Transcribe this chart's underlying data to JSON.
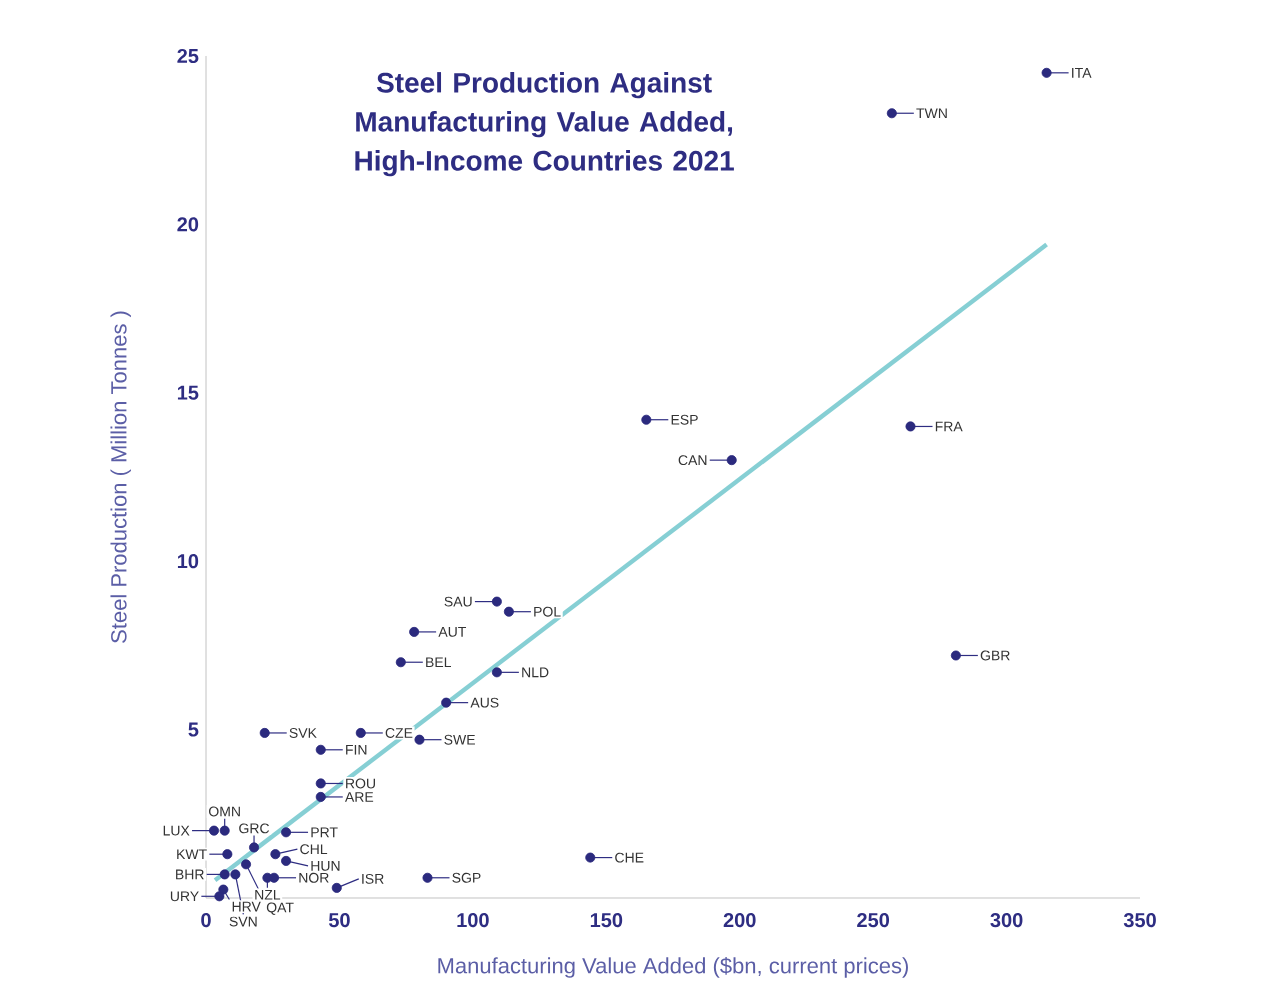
{
  "chart_data": {
    "type": "scatter",
    "title": "Steel Production Against Manufacturing Value Added, High-Income Countries 2021",
    "xlabel": "Manufacturing Value Added ($bn, current prices)",
    "ylabel": "Steel Production ( Million Tonnes )",
    "xlim": [
      0,
      350
    ],
    "xticks": [
      0,
      50,
      100,
      150,
      200,
      250,
      300,
      350
    ],
    "ylim": [
      0,
      25
    ],
    "yticks": [
      5,
      10,
      15,
      20,
      25
    ],
    "marker": "circle",
    "series": [
      {
        "color": "#2b2a7e",
        "x": [
          315,
          257,
          165,
          197,
          264,
          281,
          109,
          113.5,
          78,
          73,
          109,
          90,
          22,
          58,
          80,
          43,
          43,
          43,
          144,
          83,
          49,
          3,
          7,
          18,
          30,
          8,
          26,
          30,
          15,
          11,
          7,
          23,
          25.5,
          6.5,
          5
        ],
        "values": [
          24.5,
          23.3,
          14.2,
          13.0,
          14.0,
          7.2,
          8.8,
          8.5,
          7.9,
          7.0,
          6.7,
          5.8,
          4.9,
          4.9,
          4.7,
          4.4,
          3.4,
          3.0,
          1.2,
          0.6,
          0.3,
          2.0,
          2.0,
          1.5,
          1.95,
          1.3,
          1.3,
          1.1,
          1.0,
          0.7,
          0.7,
          0.6,
          0.6,
          0.25,
          0.05
        ]
      },
      {
        "type": "line",
        "marker": "none",
        "color": "#86cfd4",
        "x": [
          3.4,
          315
        ],
        "values": [
          0.53,
          19.4
        ]
      }
    ],
    "annotations": [
      {
        "text": "ITA",
        "x": 315,
        "y": 24.5
      },
      {
        "text": "TWN",
        "x": 257,
        "y": 23.3
      },
      {
        "text": "ESP",
        "x": 165,
        "y": 14.2
      },
      {
        "text": "CAN",
        "x": 197,
        "y": 13.0
      },
      {
        "text": "FRA",
        "x": 264,
        "y": 14.0
      },
      {
        "text": "GBR",
        "x": 281,
        "y": 7.2
      },
      {
        "text": "SAU",
        "x": 109,
        "y": 8.8
      },
      {
        "text": "POL",
        "x": 113.5,
        "y": 8.5
      },
      {
        "text": "AUT",
        "x": 78,
        "y": 7.9
      },
      {
        "text": "BEL",
        "x": 73,
        "y": 7.0
      },
      {
        "text": "NLD",
        "x": 109,
        "y": 6.7
      },
      {
        "text": "AUS",
        "x": 90,
        "y": 5.8
      },
      {
        "text": "SVK",
        "x": 22,
        "y": 4.9
      },
      {
        "text": "CZE",
        "x": 58,
        "y": 4.9
      },
      {
        "text": "SWE",
        "x": 80,
        "y": 4.7
      },
      {
        "text": "FIN",
        "x": 43,
        "y": 4.4
      },
      {
        "text": "ROU",
        "x": 43,
        "y": 3.4
      },
      {
        "text": "ARE",
        "x": 43,
        "y": 3.0
      },
      {
        "text": "CHE",
        "x": 144,
        "y": 1.2
      },
      {
        "text": "SGP",
        "x": 83,
        "y": 0.6
      },
      {
        "text": "ISR",
        "x": 49,
        "y": 0.3
      },
      {
        "text": "LUX",
        "x": 3,
        "y": 2.0
      },
      {
        "text": "OMN",
        "x": 7,
        "y": 2.0
      },
      {
        "text": "GRC",
        "x": 18,
        "y": 1.5
      },
      {
        "text": "PRT",
        "x": 30,
        "y": 1.95
      },
      {
        "text": "KWT",
        "x": 8,
        "y": 1.3
      },
      {
        "text": "CHL",
        "x": 26,
        "y": 1.3
      },
      {
        "text": "HUN",
        "x": 30,
        "y": 1.1
      },
      {
        "text": "QAT",
        "x": 15,
        "y": 1.0
      },
      {
        "text": "SVN",
        "x": 11,
        "y": 0.7
      },
      {
        "text": "BHR",
        "x": 7,
        "y": 0.7
      },
      {
        "text": "NZL",
        "x": 23,
        "y": 0.6
      },
      {
        "text": "NOR",
        "x": 25.5,
        "y": 0.6
      },
      {
        "text": "HRV",
        "x": 6.5,
        "y": 0.25
      },
      {
        "text": "URY",
        "x": 5,
        "y": 0.05
      }
    ]
  }
}
